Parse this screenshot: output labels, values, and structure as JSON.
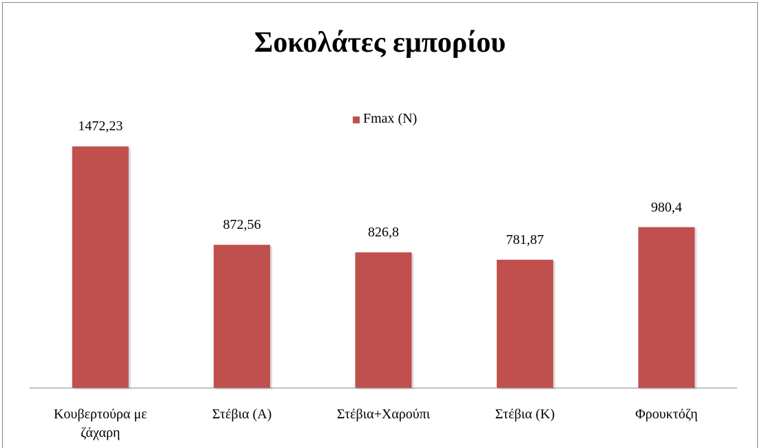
{
  "chart_data": {
    "type": "bar",
    "title": "Σοκολάτες εμπορίου",
    "categories": [
      "Κουβερτούρα με ζάχαρη",
      "Στέβια (Α)",
      "Στέβια+Χαρούπι",
      "Στέβια (Κ)",
      "Φρουκτόζη"
    ],
    "series": [
      {
        "name": "Fmax (N)",
        "color": "#c0504d",
        "values": [
          1472.23,
          872.56,
          826.8,
          781.87,
          980.4
        ],
        "value_labels": [
          "1472,23",
          "872,56",
          "826,8",
          "781,87",
          "980,4"
        ]
      }
    ],
    "ylim": [
      0,
      1600
    ],
    "legend": "top"
  }
}
